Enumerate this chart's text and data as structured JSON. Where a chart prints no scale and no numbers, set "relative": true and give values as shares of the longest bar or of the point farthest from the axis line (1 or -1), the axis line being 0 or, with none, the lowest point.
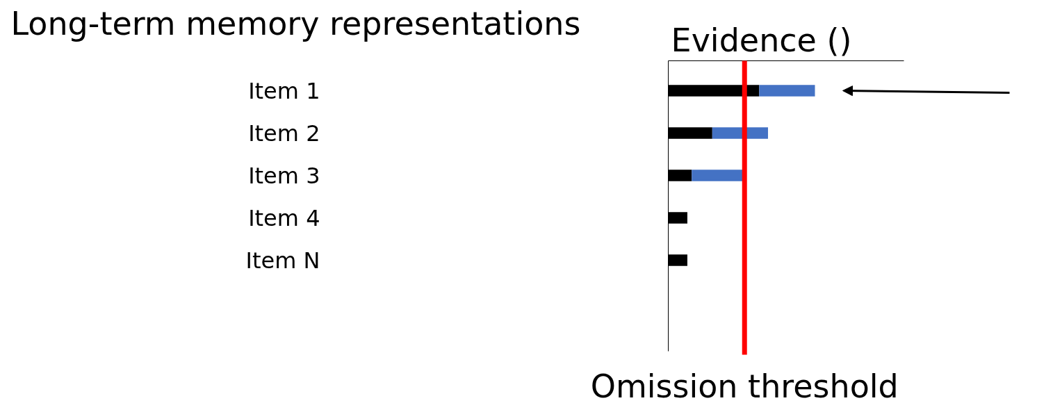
{
  "chart_data": {
    "type": "bar",
    "orientation": "horizontal",
    "stacked": true,
    "relative": true,
    "title": "Long-term memory representations",
    "xlabel": "Evidence ()",
    "categories": [
      "Item 1",
      "Item 2",
      "Item 3",
      "Item 4",
      "Item N"
    ],
    "series": [
      {
        "color": "#000000",
        "values": [
          0.62,
          0.3,
          0.16,
          0.13,
          0.13
        ]
      },
      {
        "color": "#4472c4",
        "values": [
          0.38,
          0.38,
          0.35,
          null,
          null
        ]
      }
    ],
    "ref_lines": [
      {
        "axis": "x",
        "value": 0.52,
        "label": "Omission threshold",
        "color": "#ff0000"
      }
    ],
    "grid": false
  }
}
